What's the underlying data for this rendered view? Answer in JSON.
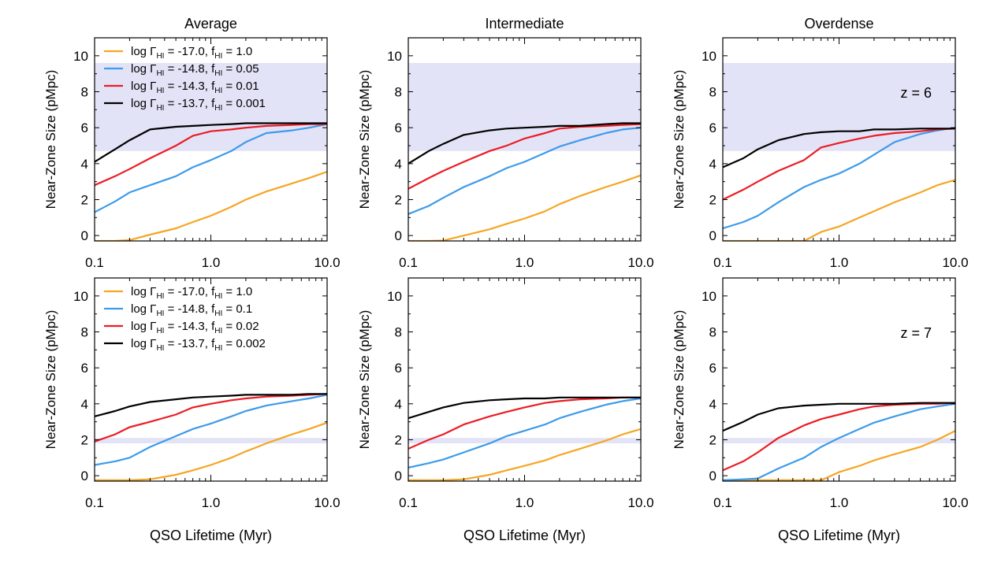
{
  "chart_data": {
    "type": "line",
    "x_scale": "log",
    "xlim": [
      0.1,
      10.0
    ],
    "ylim": [
      -0.3,
      11.0
    ],
    "x_tick_labels": [
      "0.1",
      "1.0",
      "10.0"
    ],
    "y_tick_labels": [
      "0",
      "2",
      "4",
      "6",
      "8",
      "10"
    ],
    "y_ticks": [
      0,
      2,
      4,
      6,
      8,
      10
    ],
    "xlabel": "QSO Lifetime (Myr)",
    "ylabel": "Near-Zone Size (pMpc)",
    "colors": {
      "orange": "#f5a623",
      "blue": "#3d9be9",
      "red": "#ec1c24",
      "black": "#000000",
      "band": "#e3e3f7"
    },
    "column_titles": [
      "Average",
      "Intermediate",
      "Overdense"
    ],
    "x": [
      0.1,
      0.15,
      0.2,
      0.3,
      0.5,
      0.7,
      1.0,
      1.5,
      2.0,
      3.0,
      5.0,
      7.0,
      10.0
    ],
    "rows": [
      {
        "redshift_label": "z = 6",
        "band": [
          4.7,
          9.6
        ],
        "legend": [
          {
            "gamma_label": "log Γ",
            "gamma_sub": "HI",
            "gamma_value": " = -17.0, f",
            "f_sub": "HI",
            "f_value": " = 1.0",
            "color": "#f5a623"
          },
          {
            "gamma_label": "log Γ",
            "gamma_sub": "HI",
            "gamma_value": " = -14.8, f",
            "f_sub": "HI",
            "f_value": " = 0.05",
            "color": "#3d9be9"
          },
          {
            "gamma_label": "log Γ",
            "gamma_sub": "HI",
            "gamma_value": " = -14.3, f",
            "f_sub": "HI",
            "f_value": " = 0.01",
            "color": "#ec1c24"
          },
          {
            "gamma_label": "log Γ",
            "gamma_sub": "HI",
            "gamma_value": " = -13.7, f",
            "f_sub": "HI",
            "f_value": " = 0.001",
            "color": "#000000"
          }
        ],
        "panels": [
          {
            "title": "Average",
            "series": [
              {
                "color": "#f5a623",
                "values": [
                  -0.3,
                  -0.3,
                  -0.25,
                  0.05,
                  0.4,
                  0.75,
                  1.1,
                  1.6,
                  2.0,
                  2.45,
                  2.9,
                  3.2,
                  3.55
                ]
              },
              {
                "color": "#3d9be9",
                "values": [
                  1.3,
                  1.9,
                  2.4,
                  2.8,
                  3.3,
                  3.8,
                  4.2,
                  4.7,
                  5.2,
                  5.7,
                  5.85,
                  6.0,
                  6.2
                ]
              },
              {
                "color": "#ec1c24",
                "values": [
                  2.8,
                  3.3,
                  3.7,
                  4.3,
                  5.0,
                  5.55,
                  5.8,
                  5.9,
                  6.0,
                  6.1,
                  6.15,
                  6.2,
                  6.2
                ]
              },
              {
                "color": "#000000",
                "values": [
                  4.1,
                  4.8,
                  5.3,
                  5.9,
                  6.05,
                  6.1,
                  6.15,
                  6.2,
                  6.25,
                  6.25,
                  6.25,
                  6.25,
                  6.25
                ]
              }
            ]
          },
          {
            "title": "Intermediate",
            "series": [
              {
                "color": "#f5a623",
                "values": [
                  -0.3,
                  -0.3,
                  -0.28,
                  0.0,
                  0.35,
                  0.65,
                  0.95,
                  1.35,
                  1.75,
                  2.2,
                  2.7,
                  3.0,
                  3.35
                ]
              },
              {
                "color": "#3d9be9",
                "values": [
                  1.2,
                  1.65,
                  2.1,
                  2.7,
                  3.3,
                  3.75,
                  4.1,
                  4.6,
                  4.95,
                  5.3,
                  5.7,
                  5.9,
                  6.0
                ]
              },
              {
                "color": "#ec1c24",
                "values": [
                  2.6,
                  3.2,
                  3.6,
                  4.1,
                  4.7,
                  5.0,
                  5.4,
                  5.7,
                  5.95,
                  6.05,
                  6.1,
                  6.15,
                  6.2
                ]
              },
              {
                "color": "#000000",
                "values": [
                  4.0,
                  4.7,
                  5.1,
                  5.6,
                  5.85,
                  5.95,
                  6.0,
                  6.05,
                  6.1,
                  6.1,
                  6.2,
                  6.25,
                  6.25
                ]
              }
            ]
          },
          {
            "title": "Overdense",
            "series": [
              {
                "color": "#f5a623",
                "values": [
                  -0.3,
                  -0.3,
                  -0.3,
                  -0.3,
                  -0.3,
                  0.2,
                  0.5,
                  1.0,
                  1.35,
                  1.85,
                  2.4,
                  2.8,
                  3.1
                ]
              },
              {
                "color": "#3d9be9",
                "values": [
                  0.4,
                  0.75,
                  1.1,
                  1.85,
                  2.7,
                  3.1,
                  3.45,
                  4.0,
                  4.5,
                  5.2,
                  5.65,
                  5.85,
                  6.0
                ]
              },
              {
                "color": "#ec1c24",
                "values": [
                  2.0,
                  2.55,
                  3.0,
                  3.6,
                  4.2,
                  4.9,
                  5.15,
                  5.4,
                  5.55,
                  5.7,
                  5.8,
                  5.9,
                  5.95
                ]
              },
              {
                "color": "#000000",
                "values": [
                  3.8,
                  4.3,
                  4.8,
                  5.3,
                  5.65,
                  5.75,
                  5.8,
                  5.8,
                  5.9,
                  5.9,
                  5.95,
                  5.95,
                  5.95
                ]
              }
            ]
          }
        ]
      },
      {
        "redshift_label": "z = 7",
        "band": [
          1.8,
          2.1
        ],
        "legend": [
          {
            "gamma_label": "log Γ",
            "gamma_sub": "HI",
            "gamma_value": " = -17.0, f",
            "f_sub": "HI",
            "f_value": " = 1.0",
            "color": "#f5a623"
          },
          {
            "gamma_label": "log Γ",
            "gamma_sub": "HI",
            "gamma_value": " = -14.8, f",
            "f_sub": "HI",
            "f_value": " = 0.1",
            "color": "#3d9be9"
          },
          {
            "gamma_label": "log Γ",
            "gamma_sub": "HI",
            "gamma_value": " = -14.3, f",
            "f_sub": "HI",
            "f_value": " = 0.02",
            "color": "#ec1c24"
          },
          {
            "gamma_label": "log Γ",
            "gamma_sub": "HI",
            "gamma_value": " = -13.7, f",
            "f_sub": "HI",
            "f_value": " = 0.002",
            "color": "#000000"
          }
        ],
        "panels": [
          {
            "title": "",
            "series": [
              {
                "color": "#f5a623",
                "values": [
                  -0.25,
                  -0.25,
                  -0.25,
                  -0.2,
                  0.05,
                  0.3,
                  0.6,
                  1.0,
                  1.35,
                  1.8,
                  2.3,
                  2.6,
                  2.95
                ]
              },
              {
                "color": "#3d9be9",
                "values": [
                  0.6,
                  0.8,
                  1.0,
                  1.6,
                  2.2,
                  2.6,
                  2.9,
                  3.3,
                  3.6,
                  3.9,
                  4.15,
                  4.3,
                  4.5
                ]
              },
              {
                "color": "#ec1c24",
                "values": [
                  1.9,
                  2.3,
                  2.7,
                  3.0,
                  3.4,
                  3.8,
                  4.0,
                  4.2,
                  4.3,
                  4.4,
                  4.45,
                  4.5,
                  4.55
                ]
              },
              {
                "color": "#000000",
                "values": [
                  3.3,
                  3.6,
                  3.85,
                  4.1,
                  4.25,
                  4.35,
                  4.4,
                  4.45,
                  4.5,
                  4.5,
                  4.5,
                  4.55,
                  4.55
                ]
              }
            ]
          },
          {
            "title": "",
            "series": [
              {
                "color": "#f5a623",
                "values": [
                  -0.25,
                  -0.25,
                  -0.25,
                  -0.2,
                  0.05,
                  0.3,
                  0.55,
                  0.85,
                  1.15,
                  1.5,
                  1.95,
                  2.3,
                  2.6
                ]
              },
              {
                "color": "#3d9be9",
                "values": [
                  0.45,
                  0.7,
                  0.9,
                  1.3,
                  1.8,
                  2.2,
                  2.5,
                  2.85,
                  3.2,
                  3.55,
                  3.95,
                  4.15,
                  4.3
                ]
              },
              {
                "color": "#ec1c24",
                "values": [
                  1.5,
                  2.0,
                  2.3,
                  2.85,
                  3.3,
                  3.55,
                  3.8,
                  4.05,
                  4.15,
                  4.25,
                  4.3,
                  4.35,
                  4.35
                ]
              },
              {
                "color": "#000000",
                "values": [
                  3.2,
                  3.55,
                  3.8,
                  4.05,
                  4.2,
                  4.25,
                  4.3,
                  4.3,
                  4.35,
                  4.35,
                  4.35,
                  4.35,
                  4.35
                ]
              }
            ]
          },
          {
            "title": "",
            "series": [
              {
                "color": "#f5a623",
                "values": [
                  -0.25,
                  -0.25,
                  -0.25,
                  -0.25,
                  -0.25,
                  -0.25,
                  0.2,
                  0.55,
                  0.85,
                  1.2,
                  1.6,
                  2.0,
                  2.5
                ]
              },
              {
                "color": "#3d9be9",
                "values": [
                  -0.25,
                  -0.2,
                  -0.15,
                  0.4,
                  1.0,
                  1.6,
                  2.1,
                  2.6,
                  2.95,
                  3.3,
                  3.7,
                  3.85,
                  4.0
                ]
              },
              {
                "color": "#ec1c24",
                "values": [
                  0.3,
                  0.8,
                  1.3,
                  2.1,
                  2.8,
                  3.15,
                  3.4,
                  3.7,
                  3.85,
                  3.95,
                  4.0,
                  4.0,
                  4.05
                ]
              },
              {
                "color": "#000000",
                "values": [
                  2.5,
                  3.0,
                  3.4,
                  3.75,
                  3.9,
                  3.95,
                  4.0,
                  4.0,
                  4.0,
                  4.0,
                  4.05,
                  4.05,
                  4.05
                ]
              }
            ]
          }
        ]
      }
    ]
  }
}
